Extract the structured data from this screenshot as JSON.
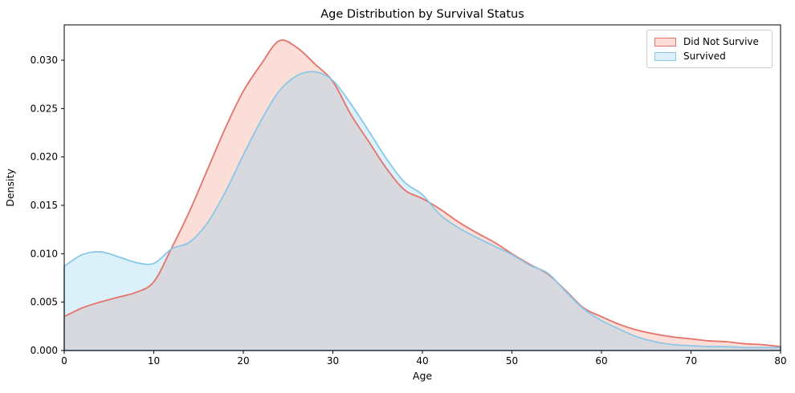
{
  "figure": {
    "title": "Age Distribution by Survival Status",
    "xlabel": "Age",
    "ylabel": "Density",
    "background_color": "#ffffff",
    "frame_color": "#000000"
  },
  "legend": {
    "position": "upper right",
    "items": [
      {
        "label": "Did Not Survive",
        "fill": "#fbdeda",
        "edge": "#e5726a"
      },
      {
        "label": "Survived",
        "fill": "#ddeef8",
        "edge": "#8ac8e8"
      }
    ]
  },
  "chart_data": {
    "type": "area",
    "subtype": "kde-density",
    "title": "Age Distribution by Survival Status",
    "xlabel": "Age",
    "ylabel": "Density",
    "grid": false,
    "legend_position": "upper right",
    "xlim": [
      0,
      80
    ],
    "ylim": [
      0,
      0.03365
    ],
    "xticks": [
      0,
      10,
      20,
      30,
      40,
      50,
      60,
      70,
      80
    ],
    "xtick_labels": [
      "0",
      "10",
      "20",
      "30",
      "40",
      "50",
      "60",
      "70",
      "80"
    ],
    "yticks": [
      0.0,
      0.005,
      0.01,
      0.015,
      0.02,
      0.025,
      0.03
    ],
    "ytick_labels": [
      "0.000",
      "0.005",
      "0.010",
      "0.015",
      "0.020",
      "0.025",
      "0.030"
    ],
    "x": [
      0,
      2,
      4,
      6,
      8,
      10,
      12,
      14,
      16,
      18,
      20,
      22,
      24,
      26,
      28,
      30,
      32,
      34,
      36,
      38,
      40,
      42,
      44,
      46,
      48,
      50,
      52,
      54,
      56,
      58,
      60,
      62,
      64,
      66,
      68,
      70,
      72,
      74,
      76,
      78,
      80
    ],
    "series": [
      {
        "name": "Did Not Survive",
        "line_color": "#e5726a",
        "fill_color": "#f2917d",
        "fill_alpha": 0.3,
        "values": [
          0.0035,
          0.0044,
          0.005,
          0.0055,
          0.006,
          0.0071,
          0.0106,
          0.0144,
          0.0187,
          0.023,
          0.0268,
          0.0296,
          0.032,
          0.0313,
          0.0296,
          0.0278,
          0.0244,
          0.0216,
          0.0188,
          0.0166,
          0.0157,
          0.0146,
          0.0133,
          0.0122,
          0.0112,
          0.01,
          0.0089,
          0.0079,
          0.0062,
          0.0044,
          0.0035,
          0.0027,
          0.0021,
          0.0017,
          0.0014,
          0.0012,
          0.001,
          0.0009,
          0.0007,
          0.0006,
          0.0004
        ]
      },
      {
        "name": "Survived",
        "line_color": "#8ac8e8",
        "fill_color": "#87ceeb",
        "fill_alpha": 0.3,
        "values": [
          0.0087,
          0.0099,
          0.0102,
          0.0097,
          0.0091,
          0.009,
          0.0105,
          0.0112,
          0.0132,
          0.0164,
          0.0202,
          0.0238,
          0.0268,
          0.0284,
          0.0288,
          0.0279,
          0.0255,
          0.0227,
          0.0198,
          0.0174,
          0.0161,
          0.014,
          0.0127,
          0.0117,
          0.0108,
          0.0099,
          0.0088,
          0.008,
          0.0061,
          0.0043,
          0.0031,
          0.0022,
          0.0014,
          0.0009,
          0.0006,
          0.0005,
          0.0004,
          0.0004,
          0.0003,
          0.0003,
          0.0003
        ]
      }
    ],
    "annotations": {
      "red_peak": {
        "age": 24.5,
        "density": 0.0321
      },
      "blue_peak": {
        "age": 27.5,
        "density": 0.0288
      },
      "blue_child_bump": {
        "age": 4,
        "density": 0.0102
      }
    }
  }
}
